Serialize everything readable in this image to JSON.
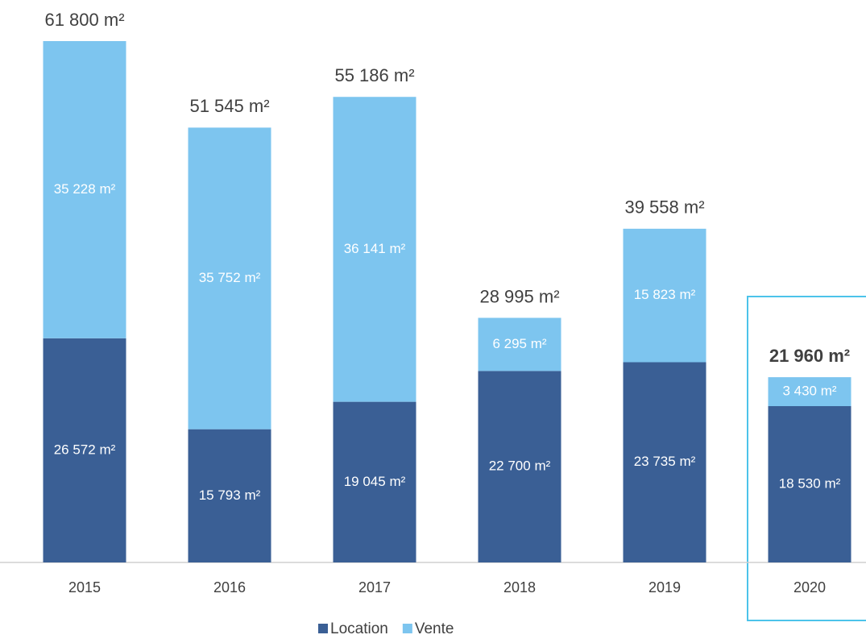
{
  "chart_data": {
    "type": "stacked_bar",
    "categories": [
      "2015",
      "2016",
      "2017",
      "2018",
      "2019",
      "2020"
    ],
    "series": [
      {
        "name": "Location",
        "color": "#3a5f95",
        "values": [
          26572,
          15793,
          19045,
          22700,
          23735,
          18530
        ],
        "value_labels": [
          "26 572 m²",
          "15 793 m²",
          "19 045 m²",
          "22 700 m²",
          "23 735 m²",
          "18 530 m²"
        ]
      },
      {
        "name": "Vente",
        "color": "#7dc5ef",
        "values": [
          35228,
          35752,
          36141,
          6295,
          15823,
          3430
        ],
        "value_labels": [
          "35 228 m²",
          "35 752 m²",
          "36 141 m²",
          "6 295 m²",
          "15 823 m²",
          "3 430 m²"
        ]
      }
    ],
    "totals": {
      "values": [
        61800,
        51545,
        55186,
        28995,
        39558,
        21960
      ],
      "value_labels": [
        "61 800 m²",
        "51 545 m²",
        "55 186 m²",
        "28 995 m²",
        "39 558 m²",
        "21 960 m²"
      ]
    },
    "legend": "bottom"
  }
}
